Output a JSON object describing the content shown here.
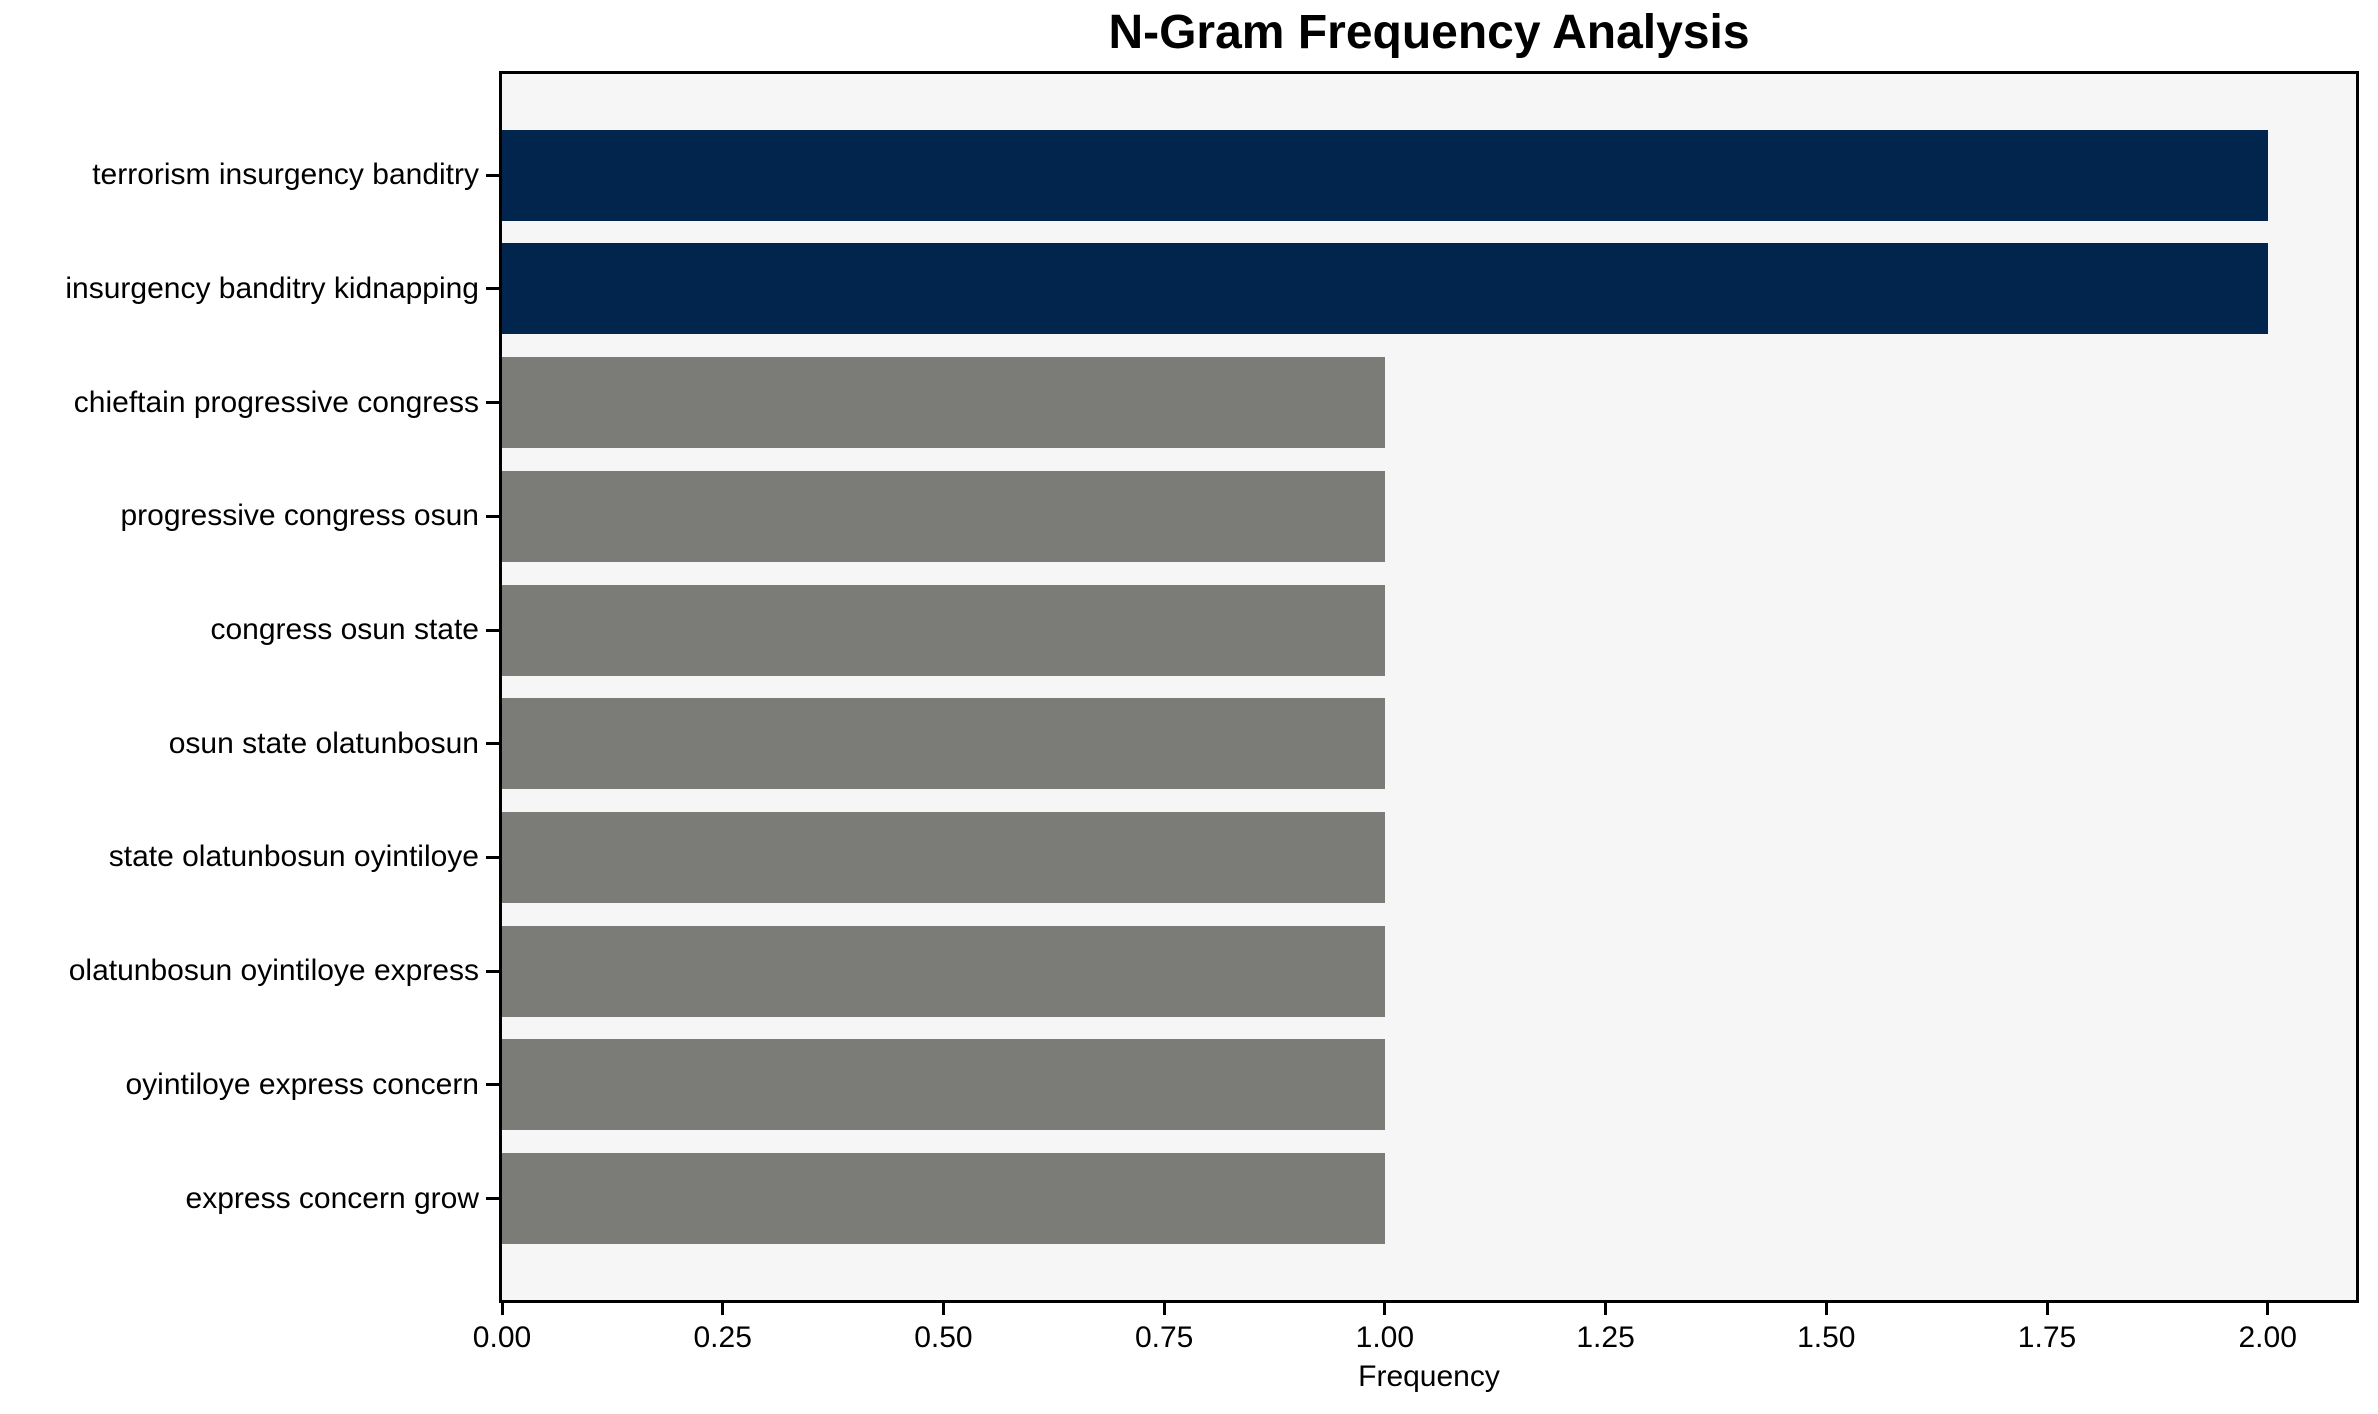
{
  "chart_data": {
    "type": "bar",
    "orientation": "horizontal",
    "title": "N-Gram Frequency Analysis",
    "xlabel": "Frequency",
    "ylabel": "",
    "categories": [
      "terrorism insurgency banditry",
      "insurgency banditry kidnapping",
      "chieftain progressive congress",
      "progressive congress osun",
      "congress osun state",
      "osun state olatunbosun",
      "state olatunbosun oyintiloye",
      "olatunbosun oyintiloye express",
      "oyintiloye express concern",
      "express concern grow"
    ],
    "values": [
      2,
      2,
      1,
      1,
      1,
      1,
      1,
      1,
      1,
      1
    ],
    "bar_colors": [
      "#02254e",
      "#02254e",
      "#7b7b78",
      "#7b7b78",
      "#7b7b78",
      "#7b7b78",
      "#7b7b78",
      "#7b7b78",
      "#7b7b78",
      "#7b7b78"
    ],
    "xlim": [
      0,
      2.1
    ],
    "x_tick_values": [
      0,
      0.25,
      0.5,
      0.75,
      1.0,
      1.25,
      1.5,
      1.75,
      2.0
    ],
    "x_tick_labels": [
      "0.00",
      "0.25",
      "0.50",
      "0.75",
      "1.00",
      "1.25",
      "1.50",
      "1.75",
      "2.00"
    ],
    "grid": false,
    "legend": "none",
    "colors": {
      "highlight_bar": "#02254e",
      "default_bar": "#7b7b78",
      "plot_background": "#f7f6f6",
      "figure_background": "#ffffff",
      "spine": "#000000",
      "text": "#000000"
    }
  }
}
